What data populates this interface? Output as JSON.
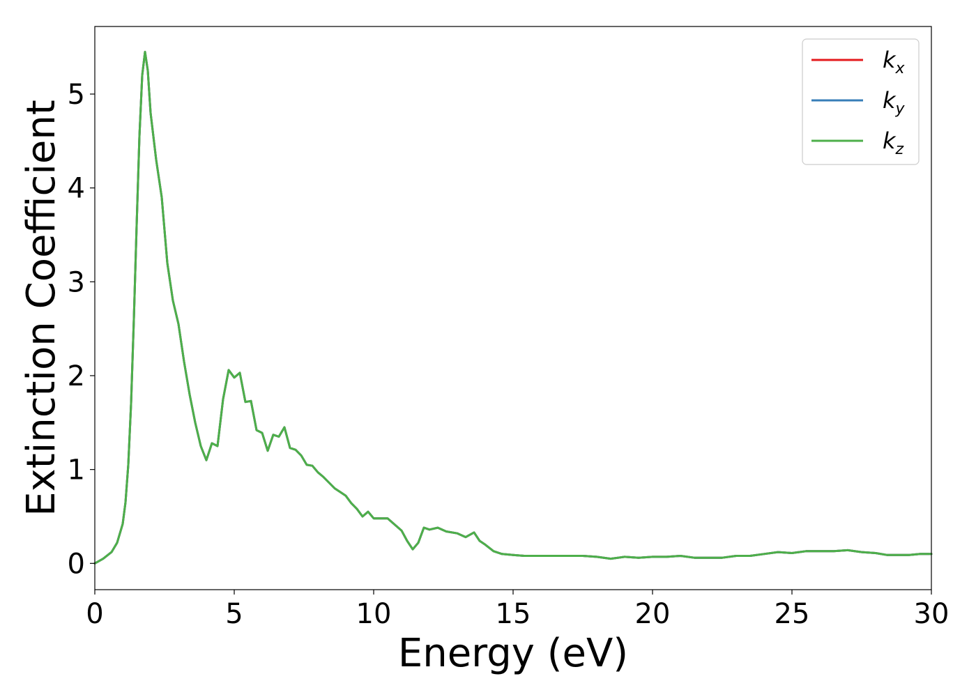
{
  "chart_data": {
    "type": "line",
    "title": "",
    "xlabel": "Energy (eV)",
    "ylabel": "Extinction Coefficient",
    "xlim": [
      0,
      30
    ],
    "ylim": [
      -0.28,
      5.72
    ],
    "x_ticks": [
      "0",
      "5",
      "10",
      "15",
      "20",
      "25",
      "30"
    ],
    "y_ticks": [
      "0",
      "1",
      "2",
      "3",
      "4",
      "5"
    ],
    "grid": false,
    "legend_position": "top-right",
    "series": [
      {
        "name": "k",
        "subscript": "x",
        "color": "#e41a1c"
      },
      {
        "name": "k",
        "subscript": "y",
        "color": "#377eb8"
      },
      {
        "name": "k",
        "subscript": "z",
        "color": "#4daf4a"
      }
    ],
    "x": [
      0,
      0.3,
      0.6,
      0.8,
      1.0,
      1.1,
      1.2,
      1.3,
      1.4,
      1.5,
      1.6,
      1.7,
      1.8,
      1.9,
      2.0,
      2.2,
      2.4,
      2.6,
      2.8,
      3.0,
      3.2,
      3.4,
      3.6,
      3.8,
      4.0,
      4.2,
      4.4,
      4.6,
      4.8,
      5.0,
      5.2,
      5.4,
      5.6,
      5.8,
      6.0,
      6.2,
      6.4,
      6.6,
      6.8,
      7.0,
      7.2,
      7.4,
      7.6,
      7.8,
      8.0,
      8.2,
      8.4,
      8.6,
      8.8,
      9.0,
      9.2,
      9.4,
      9.6,
      9.8,
      10.0,
      10.5,
      11.0,
      11.2,
      11.4,
      11.6,
      11.8,
      12.0,
      12.3,
      12.6,
      13.0,
      13.3,
      13.6,
      13.8,
      14.0,
      14.3,
      14.6,
      15.0,
      15.4,
      15.8,
      16.2,
      16.6,
      17.0,
      17.5,
      18.0,
      18.5,
      19.0,
      19.5,
      20.0,
      20.5,
      21.0,
      21.5,
      22.0,
      22.5,
      23.0,
      23.5,
      24.0,
      24.5,
      25.0,
      25.5,
      26.0,
      26.5,
      27.0,
      27.5,
      28.0,
      28.4,
      28.8,
      29.2,
      29.6,
      30.0
    ],
    "values": [
      0,
      0.05,
      0.12,
      0.22,
      0.42,
      0.65,
      1.05,
      1.7,
      2.6,
      3.6,
      4.55,
      5.2,
      5.45,
      5.25,
      4.8,
      4.3,
      3.9,
      3.2,
      2.8,
      2.55,
      2.15,
      1.8,
      1.5,
      1.25,
      1.1,
      1.28,
      1.25,
      1.75,
      2.06,
      1.98,
      2.03,
      1.72,
      1.73,
      1.42,
      1.39,
      1.2,
      1.37,
      1.35,
      1.45,
      1.23,
      1.21,
      1.15,
      1.05,
      1.04,
      0.97,
      0.92,
      0.86,
      0.8,
      0.76,
      0.72,
      0.64,
      0.58,
      0.5,
      0.55,
      0.48,
      0.48,
      0.35,
      0.24,
      0.15,
      0.22,
      0.38,
      0.36,
      0.38,
      0.34,
      0.32,
      0.28,
      0.33,
      0.24,
      0.2,
      0.13,
      0.1,
      0.09,
      0.08,
      0.08,
      0.08,
      0.08,
      0.08,
      0.08,
      0.07,
      0.05,
      0.07,
      0.06,
      0.07,
      0.07,
      0.08,
      0.06,
      0.06,
      0.06,
      0.08,
      0.08,
      0.1,
      0.12,
      0.11,
      0.13,
      0.13,
      0.13,
      0.14,
      0.12,
      0.11,
      0.09,
      0.09,
      0.09,
      0.1,
      0.1
    ]
  }
}
